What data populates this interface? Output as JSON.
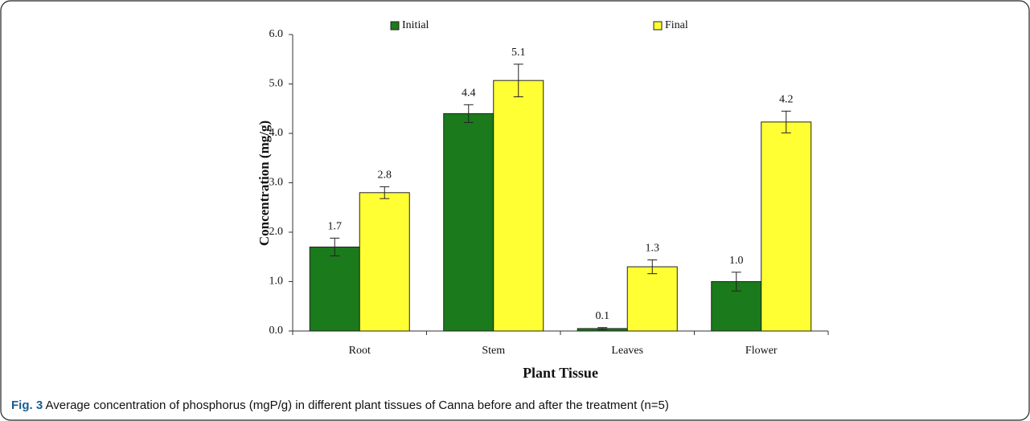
{
  "chart_data": {
    "type": "bar",
    "y_label": "Concentration (mg/g)",
    "x_label": "Plant Tissue",
    "caption_label": "Fig. 3",
    "caption": "Average concentration of phosphorus (mgP/g) in different plant tissues of Canna before and after the treatment (n=5)",
    "categories": [
      "Root",
      "Stem",
      "Leaves",
      "Flower"
    ],
    "series": [
      {
        "name": "Initial",
        "color": "#1b7a1b",
        "values": [
          1.7,
          4.4,
          0.05,
          1.0
        ],
        "value_labels": [
          "1.7",
          "4.4",
          "0.1",
          "1.0"
        ],
        "errors": [
          0.18,
          0.18,
          0.02,
          0.19
        ]
      },
      {
        "name": "Final",
        "color": "#ffff33",
        "values": [
          2.8,
          5.07,
          1.3,
          4.23
        ],
        "value_labels": [
          "2.8",
          "5.1",
          "1.3",
          "4.2"
        ],
        "errors": [
          0.12,
          0.33,
          0.14,
          0.22
        ]
      }
    ],
    "ylim": [
      0,
      6
    ],
    "yticks": [
      {
        "value": 0,
        "label": "0.0"
      },
      {
        "value": 1,
        "label": "1.0"
      },
      {
        "value": 2,
        "label": "2.0"
      },
      {
        "value": 3,
        "label": "3.0"
      },
      {
        "value": 4,
        "label": "4.0"
      },
      {
        "value": 5,
        "label": "5.0"
      },
      {
        "value": 6,
        "label": "6.0"
      }
    ],
    "legend": "top"
  }
}
